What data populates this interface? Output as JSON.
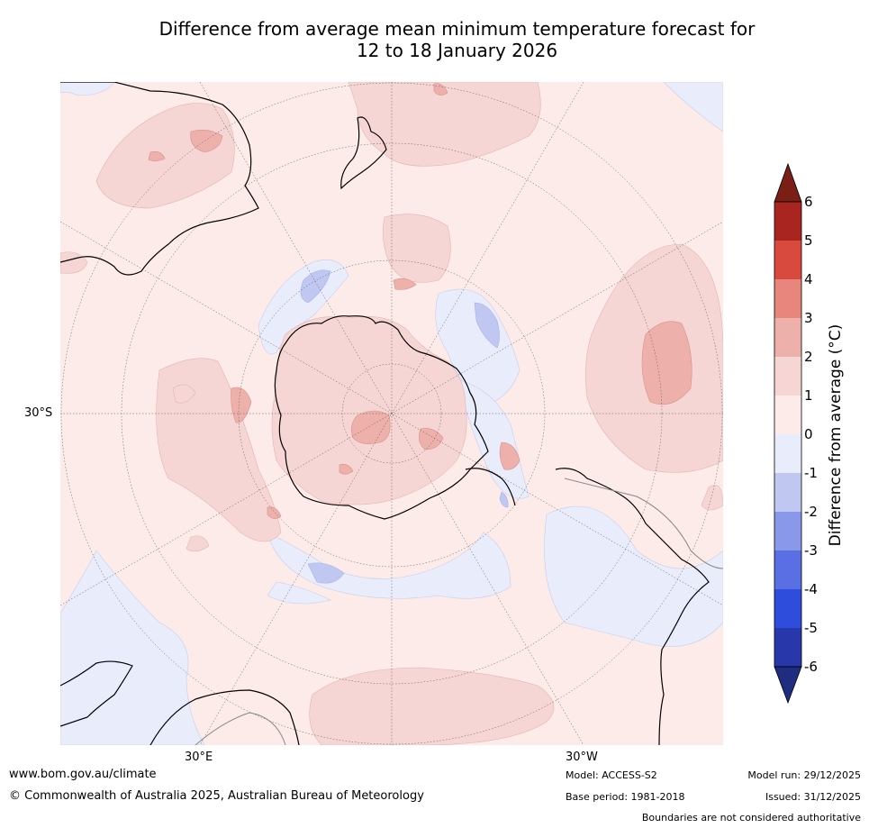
{
  "title": {
    "line1": "Difference from average mean minimum temperature forecast for",
    "line2": "12 to 18 January 2026"
  },
  "map": {
    "projection": "south polar stereographic",
    "lat_label": "30°S",
    "lon_labels": {
      "east": "30°E",
      "west": "30°W"
    }
  },
  "colorbar": {
    "label": "Difference from average (°C)",
    "ticks": [
      "6",
      "5",
      "4",
      "3",
      "2",
      "1",
      "0",
      "-1",
      "-2",
      "-3",
      "-4",
      "-5",
      "-6"
    ],
    "colors": {
      "over": "#7a1e16",
      "c5_6": "#a8261f",
      "c4_5": "#d84a3e",
      "c3_4": "#e8857c",
      "c2_3": "#edb0aa",
      "c1_2": "#f5d6d4",
      "c0_1": "#fcebe8",
      "cm1_0": "#e8ecfb",
      "cm2_m1": "#c0c8f2",
      "cm3_m2": "#8a98ea",
      "cm4_m3": "#5a6fe3",
      "cm5_m4": "#2f4ddc",
      "cm6_m5": "#2838aa",
      "under": "#1f2c80"
    }
  },
  "footer": {
    "website": "www.bom.gov.au/climate",
    "copyright": "© Commonwealth of Australia 2025, Australian Bureau of Meteorology",
    "model": "Model: ACCESS-S2",
    "base_period": "Base period: 1981-2018",
    "model_run": "Model run: 29/12/2025",
    "issued": "Issued: 31/12/2025",
    "disclaimer": "Boundaries are not considered authoritative"
  }
}
